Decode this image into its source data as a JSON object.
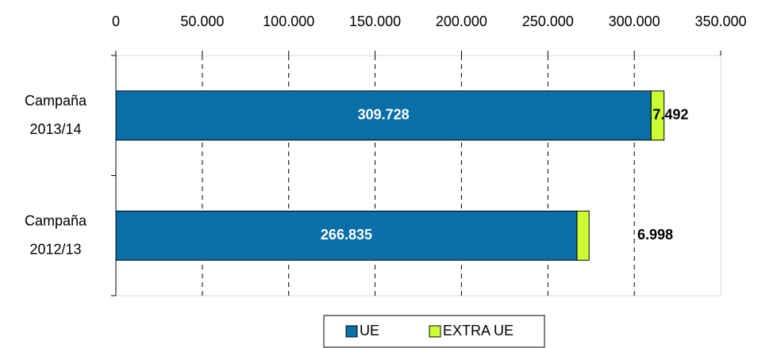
{
  "chart_data": {
    "type": "stacked_bar_horizontal",
    "categories": [
      "Campaña 2013/14",
      "Campaña 2012/13"
    ],
    "series": [
      {
        "name": "UE",
        "color": "#0a6fa6",
        "values": [
          309728,
          266835
        ],
        "value_labels": [
          "309.728",
          "266.835"
        ]
      },
      {
        "name": "EXTRA UE",
        "color": "#ccff33",
        "values": [
          7492,
          6998
        ],
        "value_labels": [
          "7.492",
          "6.998"
        ]
      }
    ],
    "xlim": [
      0,
      350000
    ],
    "xticks": [
      0,
      {
        "value": 50000,
        "label": "50.000"
      },
      {
        "value": 100000,
        "label": "100.000"
      },
      {
        "value": 150000,
        "label": "150.000"
      },
      {
        "value": 200000,
        "label": "200.000"
      },
      {
        "value": 250000,
        "label": "250.000"
      },
      {
        "value": 300000,
        "label": "300.000"
      },
      {
        "value": 350000,
        "label": "350.000"
      }
    ],
    "grid": true,
    "legend": "bottom"
  }
}
